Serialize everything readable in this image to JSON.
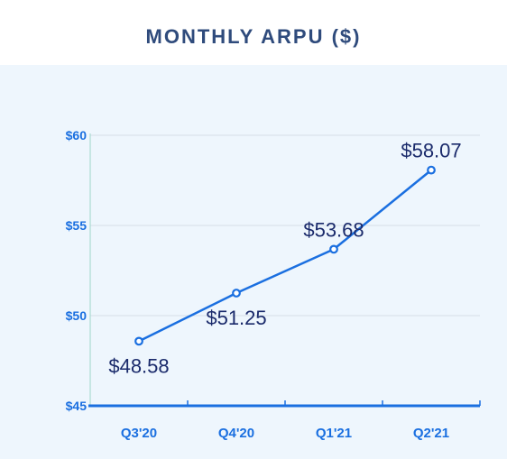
{
  "title": "MONTHLY ARPU ($)",
  "colors": {
    "title": "#2f4b7c",
    "panel_background": "#eef6fd",
    "line": "#1a6fe0",
    "axis": "#1a6fe0",
    "y_tick_label": "#1a6fe0",
    "x_tick_label": "#1a6fe0",
    "data_label": "#1a2a6b",
    "grid": "#d6dee8"
  },
  "chart_data": {
    "type": "line",
    "title": "MONTHLY ARPU ($)",
    "xlabel": "",
    "ylabel": "",
    "categories": [
      "Q3'20",
      "Q4'20",
      "Q1'21",
      "Q2'21"
    ],
    "series": [
      {
        "values": [
          48.58,
          51.25,
          53.68,
          58.07
        ],
        "labels": [
          "$48.58",
          "$51.25",
          "$53.68",
          "$58.07"
        ],
        "label_positions": [
          "below",
          "below",
          "above",
          "above"
        ]
      }
    ],
    "ylim": [
      45,
      60
    ],
    "y_ticks": [
      45,
      50,
      55,
      60
    ],
    "y_tick_labels": [
      "$45",
      "$50",
      "$55",
      "$60"
    ],
    "grid": true,
    "legend": "none"
  }
}
